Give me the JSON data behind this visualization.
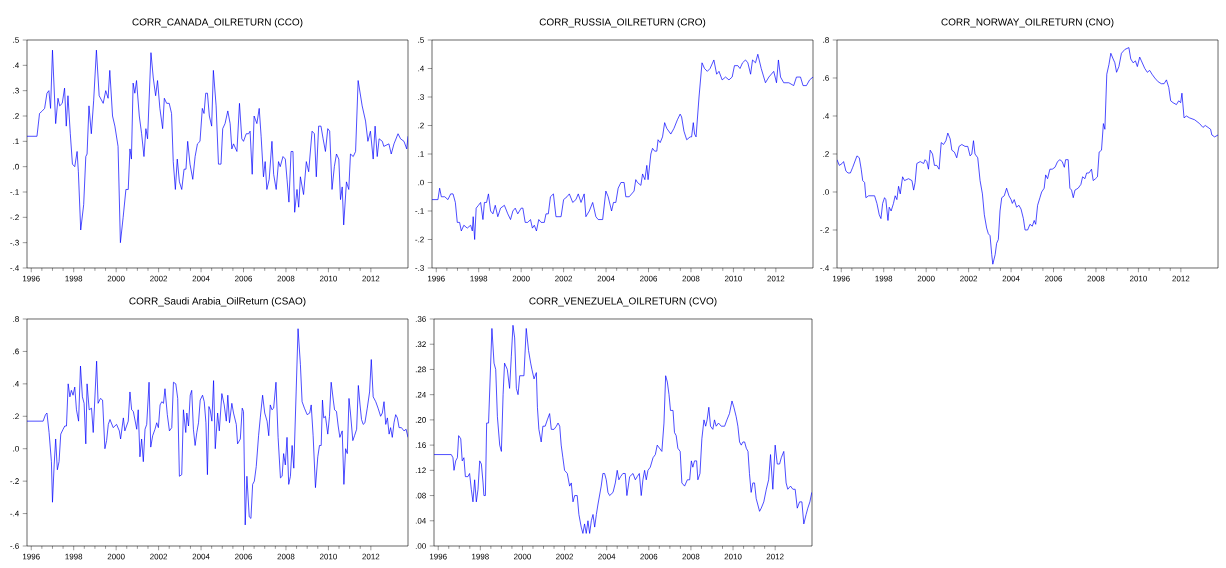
{
  "chart_data": [
    {
      "type": "line",
      "title": "CORR_CANADA_OILRETURN (CCO)",
      "xlim": [
        1995.8,
        2013.75
      ],
      "ylim": [
        -0.4,
        0.5
      ],
      "xticks": [
        1996,
        1998,
        2000,
        2002,
        2004,
        2006,
        2008,
        2010,
        2012
      ],
      "yticks": [
        {
          "value": -0.4,
          "label": "-.4"
        },
        {
          "value": -0.3,
          "label": "-.3"
        },
        {
          "value": -0.2,
          "label": "-.2"
        },
        {
          "value": -0.1,
          "label": "-.1"
        },
        {
          "value": 0,
          "label": ".0"
        },
        {
          "value": 0.1,
          "label": ".1"
        },
        {
          "value": 0.2,
          "label": ".2"
        },
        {
          "value": 0.3,
          "label": ".3"
        },
        {
          "value": 0.4,
          "label": ".4"
        },
        {
          "value": 0.5,
          "label": ".5"
        }
      ],
      "x": [
        1995.8,
        1996.27,
        1996.39,
        1996.52,
        1996.63,
        1996.74,
        1996.83,
        1996.91,
        1997.0,
        1997.15,
        1997.26,
        1997.34,
        1997.46,
        1997.57,
        1997.65,
        1997.73,
        1997.84,
        1997.94,
        1998.05,
        1998.16,
        1998.22,
        1998.33,
        1998.47,
        1998.57,
        1998.63,
        1998.72,
        1998.83,
        1998.94,
        1999.07,
        1999.2,
        1999.39,
        1999.51,
        1999.62,
        1999.7,
        1999.83,
        1999.94,
        2000.09,
        2000.2,
        2000.33,
        2000.46,
        2000.57,
        2000.65,
        2000.72,
        2000.8,
        2000.88,
        2000.96,
        2001.09,
        2001.2,
        2001.31,
        2001.4,
        2001.48,
        2001.64,
        2001.75,
        2001.86,
        2001.95,
        2002.06,
        2002.19,
        2002.27,
        2002.38,
        2002.5,
        2002.61,
        2002.69,
        2002.79,
        2002.88,
        2002.98,
        2003.09,
        2003.2,
        2003.29,
        2003.37,
        2003.48,
        2003.61,
        2003.72,
        2003.83,
        2003.95,
        2004.06,
        2004.14,
        2004.22,
        2004.3,
        2004.39,
        2004.5,
        2004.58,
        2004.71,
        2004.82,
        2004.94,
        2005.02,
        2005.13,
        2005.26,
        2005.37,
        2005.45,
        2005.53,
        2005.69,
        2005.81,
        2005.92,
        2006.0,
        2006.13,
        2006.24,
        2006.31,
        2006.41,
        2006.5,
        2006.63,
        2006.74,
        2006.83,
        2006.94,
        2007.02,
        2007.1,
        2007.21,
        2007.34,
        2007.42,
        2007.54,
        2007.65,
        2007.73,
        2007.86,
        2007.97,
        2008.05,
        2008.14,
        2008.24,
        2008.33,
        2008.41,
        2008.52,
        2008.6,
        2008.68,
        2008.83,
        2008.96,
        2009.07,
        2009.23,
        2009.34,
        2009.43,
        2009.54,
        2009.65,
        2009.75,
        2009.86,
        2009.97,
        2010.06,
        2010.17,
        2010.28,
        2010.38,
        2010.49,
        2010.57,
        2010.65,
        2010.72,
        2010.85,
        2010.96,
        2011.04,
        2011.17,
        2011.28,
        2011.4,
        2011.59,
        2011.75,
        2011.86,
        2011.98,
        2012.11,
        2012.2,
        2012.3,
        2012.39,
        2012.54,
        2012.61,
        2012.85,
        2012.96,
        2013.09,
        2013.28,
        2013.4,
        2013.56,
        2013.69,
        2013.75
      ],
      "series": [
        {
          "color": "#0000ff",
          "values": [
            0.12,
            0.12,
            0.21,
            0.22,
            0.23,
            0.29,
            0.3,
            0.23,
            0.46,
            0.17,
            0.27,
            0.24,
            0.25,
            0.31,
            0.16,
            0.28,
            0.13,
            0.01,
            0.0,
            0.06,
            -0.02,
            -0.25,
            -0.15,
            0.04,
            0.05,
            0.24,
            0.13,
            0.26,
            0.46,
            0.28,
            0.25,
            0.3,
            0.27,
            0.38,
            0.2,
            0.16,
            0.08,
            -0.3,
            -0.2,
            -0.09,
            -0.09,
            0.07,
            0.03,
            0.33,
            0.29,
            0.34,
            0.2,
            0.13,
            0.04,
            0.15,
            0.11,
            0.45,
            0.35,
            0.28,
            0.34,
            0.23,
            0.15,
            0.27,
            0.25,
            0.25,
            0.21,
            0.02,
            -0.09,
            0.03,
            -0.06,
            -0.09,
            -0.01,
            -0.01,
            0.1,
            0.01,
            -0.05,
            0.04,
            0.09,
            0.1,
            0.23,
            0.21,
            0.29,
            0.29,
            0.2,
            0.16,
            0.38,
            0.24,
            0.01,
            0.01,
            0.15,
            0.17,
            0.22,
            0.17,
            0.07,
            0.09,
            0.06,
            0.25,
            0.11,
            0.1,
            0.13,
            0.13,
            0.14,
            -0.03,
            0.2,
            0.17,
            0.23,
            0.12,
            -0.04,
            0.02,
            -0.09,
            -0.05,
            0.1,
            -0.03,
            -0.09,
            0.02,
            0.0,
            0.04,
            0.03,
            -0.05,
            -0.14,
            0.06,
            0.06,
            -0.18,
            -0.09,
            -0.16,
            -0.04,
            -0.11,
            0.02,
            -0.02,
            0.14,
            0.13,
            -0.04,
            0.16,
            0.16,
            0.11,
            0.06,
            0.15,
            0.14,
            -0.09,
            0.0,
            0.05,
            0.03,
            -0.13,
            -0.08,
            -0.23,
            -0.06,
            -0.09,
            0.05,
            0.04,
            0.06,
            0.34,
            0.24,
            0.18,
            0.1,
            0.14,
            0.03,
            0.16,
            0.04,
            0.11,
            0.1,
            0.08,
            0.09,
            0.05,
            0.09,
            0.13,
            0.11,
            0.1,
            0.07,
            0.12
          ]
        }
      ]
    },
    {
      "type": "line",
      "title": "CORR_RUSSIA_OILRETURN (CRO)",
      "xlim": [
        1995.8,
        2013.75
      ],
      "ylim": [
        -0.3,
        0.5
      ],
      "xticks": [
        1996,
        1998,
        2000,
        2002,
        2004,
        2006,
        2008,
        2010,
        2012
      ],
      "yticks": [
        {
          "value": -0.3,
          "label": "-.3"
        },
        {
          "value": -0.2,
          "label": "-.2"
        },
        {
          "value": -0.1,
          "label": "-.1"
        },
        {
          "value": 0,
          "label": ".0"
        },
        {
          "value": 0.1,
          "label": ".1"
        },
        {
          "value": 0.2,
          "label": ".2"
        },
        {
          "value": 0.3,
          "label": ".3"
        },
        {
          "value": 0.4,
          "label": ".4"
        },
        {
          "value": 0.5,
          "label": ".5"
        }
      ],
      "x": [
        1995.8,
        1996.08,
        1996.16,
        1996.24,
        1996.4,
        1996.55,
        1996.68,
        1996.79,
        1996.9,
        1996.99,
        1997.1,
        1997.18,
        1997.3,
        1997.46,
        1997.62,
        1997.7,
        1997.74,
        1997.81,
        1997.88,
        1997.99,
        1998.09,
        1998.2,
        1998.27,
        1998.37,
        1998.46,
        1998.56,
        1998.67,
        1998.78,
        1998.9,
        1999.03,
        1999.21,
        1999.37,
        1999.5,
        1999.61,
        1999.72,
        1999.84,
        2000.0,
        2000.08,
        2000.19,
        2000.31,
        2000.44,
        2000.53,
        2000.62,
        2000.72,
        2000.83,
        2000.94,
        2001.09,
        2001.17,
        2001.28,
        2001.38,
        2001.52,
        2001.64,
        2001.75,
        2001.88,
        2002.0,
        2002.16,
        2002.27,
        2002.43,
        2002.58,
        2002.69,
        2002.82,
        2002.97,
        2003.05,
        2003.21,
        2003.37,
        2003.52,
        2003.63,
        2003.84,
        2003.99,
        2004.1,
        2004.26,
        2004.35,
        2004.46,
        2004.57,
        2004.7,
        2004.85,
        2004.93,
        2005.09,
        2005.32,
        2005.4,
        2005.48,
        2005.64,
        2005.72,
        2005.83,
        2005.92,
        2005.98,
        2006.11,
        2006.19,
        2006.29,
        2006.39,
        2006.45,
        2006.55,
        2006.66,
        2006.76,
        2006.86,
        2007.05,
        2007.2,
        2007.36,
        2007.49,
        2007.56,
        2007.67,
        2007.8,
        2007.96,
        2008.03,
        2008.11,
        2008.17,
        2008.24,
        2008.38,
        2008.52,
        2008.64,
        2008.77,
        2008.9,
        2009.08,
        2009.21,
        2009.32,
        2009.47,
        2009.63,
        2009.79,
        2009.94,
        2010.05,
        2010.21,
        2010.31,
        2010.43,
        2010.57,
        2010.68,
        2010.81,
        2010.9,
        2011.04,
        2011.15,
        2011.31,
        2011.51,
        2011.67,
        2011.9,
        2012.03,
        2012.12,
        2012.22,
        2012.37,
        2012.61,
        2012.84,
        2012.97,
        2013.16,
        2013.28,
        2013.44,
        2013.59,
        2013.75
      ],
      "series": [
        {
          "color": "#0000ff",
          "values": [
            -0.06,
            -0.06,
            -0.02,
            -0.05,
            -0.05,
            -0.06,
            -0.04,
            -0.04,
            -0.07,
            -0.14,
            -0.14,
            -0.17,
            -0.15,
            -0.16,
            -0.15,
            -0.17,
            -0.12,
            -0.2,
            -0.09,
            -0.08,
            -0.07,
            -0.13,
            -0.07,
            -0.07,
            -0.04,
            -0.1,
            -0.11,
            -0.08,
            -0.12,
            -0.09,
            -0.08,
            -0.11,
            -0.13,
            -0.1,
            -0.09,
            -0.11,
            -0.09,
            -0.09,
            -0.14,
            -0.14,
            -0.13,
            -0.16,
            -0.15,
            -0.17,
            -0.13,
            -0.14,
            -0.14,
            -0.11,
            -0.11,
            -0.05,
            -0.04,
            -0.12,
            -0.12,
            -0.12,
            -0.06,
            -0.05,
            -0.04,
            -0.07,
            -0.06,
            -0.04,
            -0.07,
            -0.04,
            -0.12,
            -0.1,
            -0.07,
            -0.12,
            -0.13,
            -0.13,
            -0.03,
            -0.05,
            -0.1,
            -0.07,
            -0.07,
            -0.02,
            0.0,
            0.0,
            -0.05,
            -0.05,
            -0.03,
            0.01,
            0.0,
            -0.01,
            0.03,
            0.01,
            0.06,
            0.01,
            0.1,
            0.12,
            0.11,
            0.11,
            0.15,
            0.14,
            0.16,
            0.21,
            0.19,
            0.17,
            0.19,
            0.22,
            0.24,
            0.23,
            0.18,
            0.15,
            0.16,
            0.16,
            0.21,
            0.17,
            0.16,
            0.3,
            0.42,
            0.4,
            0.39,
            0.4,
            0.43,
            0.38,
            0.39,
            0.36,
            0.37,
            0.36,
            0.37,
            0.41,
            0.41,
            0.4,
            0.42,
            0.43,
            0.42,
            0.38,
            0.43,
            0.42,
            0.45,
            0.4,
            0.35,
            0.37,
            0.39,
            0.35,
            0.43,
            0.37,
            0.35,
            0.35,
            0.34,
            0.37,
            0.37,
            0.34,
            0.34,
            0.36,
            0.37
          ]
        }
      ]
    },
    {
      "type": "line",
      "title": "CORR_NORWAY_OILRETURN (CNO)",
      "xlim": [
        1995.8,
        2013.75
      ],
      "ylim": [
        -0.4,
        0.8
      ],
      "xticks": [
        1996,
        1998,
        2000,
        2002,
        2004,
        2006,
        2008,
        2010,
        2012
      ],
      "yticks": [
        {
          "value": -0.4,
          "label": "-.4"
        },
        {
          "value": -0.2,
          "label": "-.2"
        },
        {
          "value": 0,
          "label": ".0"
        },
        {
          "value": 0.2,
          "label": ".2"
        },
        {
          "value": 0.4,
          "label": ".4"
        },
        {
          "value": 0.6,
          "label": ".6"
        },
        {
          "value": 0.8,
          "label": ".8"
        }
      ],
      "x": [
        1995.8,
        1995.91,
        1996.04,
        1996.11,
        1996.22,
        1996.32,
        1996.43,
        1996.54,
        1996.74,
        1996.85,
        1996.94,
        1997.01,
        1997.1,
        1997.16,
        1997.29,
        1997.45,
        1997.57,
        1997.68,
        1997.79,
        1997.87,
        1997.95,
        1998.04,
        1998.1,
        1998.2,
        1998.26,
        1998.35,
        1998.46,
        1998.54,
        1998.62,
        1998.7,
        1998.78,
        1998.89,
        1998.98,
        1999.17,
        1999.33,
        1999.41,
        1999.48,
        1999.56,
        1999.72,
        1999.88,
        1999.95,
        2000.03,
        2000.11,
        2000.19,
        2000.3,
        2000.39,
        2000.5,
        2000.61,
        2000.71,
        2000.82,
        2000.93,
        2001.02,
        2001.13,
        2001.21,
        2001.33,
        2001.44,
        2001.55,
        2001.68,
        2001.83,
        2001.96,
        2002.07,
        2002.15,
        2002.23,
        2002.3,
        2002.43,
        2002.54,
        2002.65,
        2002.74,
        2002.85,
        2002.93,
        2003.01,
        2003.09,
        2003.14,
        2003.25,
        2003.32,
        2003.4,
        2003.48,
        2003.56,
        2003.68,
        2003.79,
        2003.9,
        2004.0,
        2004.06,
        2004.15,
        2004.26,
        2004.37,
        2004.47,
        2004.58,
        2004.66,
        2004.78,
        2004.89,
        2005.0,
        2005.09,
        2005.16,
        2005.25,
        2005.36,
        2005.44,
        2005.56,
        2005.63,
        2005.72,
        2005.83,
        2005.94,
        2006.07,
        2006.19,
        2006.3,
        2006.41,
        2006.51,
        2006.57,
        2006.69,
        2006.77,
        2006.85,
        2006.93,
        2007.01,
        2007.16,
        2007.29,
        2007.37,
        2007.48,
        2007.56,
        2007.67,
        2007.79,
        2007.87,
        2007.98,
        2008.07,
        2008.15,
        2008.26,
        2008.35,
        2008.42,
        2008.51,
        2008.61,
        2008.7,
        2008.81,
        2008.89,
        2008.97,
        2009.08,
        2009.2,
        2009.36,
        2009.55,
        2009.64,
        2009.75,
        2009.86,
        2009.95,
        2010.06,
        2010.14,
        2010.3,
        2010.42,
        2010.53,
        2010.64,
        2010.77,
        2010.93,
        2011.08,
        2011.21,
        2011.32,
        2011.43,
        2011.52,
        2011.63,
        2011.79,
        2011.9,
        2011.99,
        2012.05,
        2012.15,
        2012.26,
        2012.41,
        2012.65,
        2012.88,
        2013.04,
        2013.15,
        2013.28,
        2013.4,
        2013.46,
        2013.59,
        2013.75
      ],
      "series": [
        {
          "color": "#0000ff",
          "values": [
            0.17,
            0.14,
            0.15,
            0.16,
            0.11,
            0.1,
            0.1,
            0.13,
            0.19,
            0.18,
            0.12,
            0.06,
            0.05,
            -0.03,
            -0.02,
            -0.02,
            -0.02,
            -0.06,
            -0.12,
            -0.14,
            -0.06,
            -0.03,
            -0.04,
            -0.15,
            -0.08,
            -0.1,
            -0.06,
            -0.02,
            -0.04,
            0.03,
            -0.01,
            0.08,
            0.06,
            0.07,
            0.06,
            0.01,
            0.05,
            0.15,
            0.16,
            0.15,
            0.17,
            0.16,
            0.12,
            0.22,
            0.2,
            0.14,
            0.14,
            0.12,
            0.26,
            0.25,
            0.27,
            0.31,
            0.28,
            0.22,
            0.21,
            0.18,
            0.24,
            0.25,
            0.24,
            0.24,
            0.19,
            0.2,
            0.27,
            0.2,
            0.18,
            0.06,
            -0.01,
            -0.12,
            -0.19,
            -0.22,
            -0.23,
            -0.33,
            -0.38,
            -0.33,
            -0.27,
            -0.25,
            -0.1,
            -0.03,
            -0.02,
            0.02,
            -0.02,
            -0.04,
            -0.06,
            -0.04,
            -0.08,
            -0.07,
            -0.09,
            -0.14,
            -0.2,
            -0.2,
            -0.17,
            -0.18,
            -0.15,
            -0.17,
            -0.07,
            -0.03,
            0.0,
            0.02,
            0.09,
            0.07,
            0.12,
            0.12,
            0.13,
            0.16,
            0.17,
            0.16,
            0.13,
            0.17,
            0.17,
            0.02,
            0.01,
            -0.03,
            0.01,
            0.02,
            0.04,
            0.08,
            0.07,
            0.1,
            0.1,
            0.12,
            0.06,
            0.07,
            0.08,
            0.21,
            0.22,
            0.36,
            0.33,
            0.62,
            0.67,
            0.73,
            0.7,
            0.68,
            0.63,
            0.66,
            0.73,
            0.75,
            0.76,
            0.7,
            0.68,
            0.69,
            0.66,
            0.71,
            0.69,
            0.65,
            0.63,
            0.64,
            0.62,
            0.6,
            0.58,
            0.57,
            0.57,
            0.59,
            0.55,
            0.48,
            0.47,
            0.46,
            0.48,
            0.47,
            0.52,
            0.39,
            0.4,
            0.39,
            0.38,
            0.36,
            0.34,
            0.35,
            0.34,
            0.33,
            0.3,
            0.29,
            0.3
          ]
        }
      ]
    },
    {
      "type": "line",
      "title": "CORR_Saudi Arabia_OilReturn (CSAO)",
      "xlim": [
        1995.8,
        2013.75
      ],
      "ylim": [
        -0.6,
        0.8
      ],
      "xticks": [
        1996,
        1998,
        2000,
        2002,
        2004,
        2006,
        2008,
        2010,
        2012
      ],
      "yticks": [
        {
          "value": -0.6,
          "label": "-.6"
        },
        {
          "value": -0.4,
          "label": "-.4"
        },
        {
          "value": -0.2,
          "label": "-.2"
        },
        {
          "value": 0,
          "label": ".0"
        },
        {
          "value": 0.2,
          "label": ".2"
        },
        {
          "value": 0.4,
          "label": ".4"
        },
        {
          "value": 0.6,
          "label": ".6"
        },
        {
          "value": 0.8,
          "label": ".8"
        }
      ],
      "x": [
        1995.8,
        1996.56,
        1996.67,
        1996.74,
        1996.84,
        1996.95,
        1997.0,
        1997.08,
        1997.15,
        1997.23,
        1997.31,
        1997.39,
        1997.5,
        1997.58,
        1997.66,
        1997.74,
        1997.82,
        1997.89,
        1997.97,
        1998.05,
        1998.13,
        1998.23,
        1998.32,
        1998.41,
        1998.49,
        1998.57,
        1998.63,
        1998.73,
        1998.84,
        1998.92,
        1999.08,
        1999.15,
        1999.26,
        1999.36,
        1999.47,
        1999.55,
        1999.63,
        1999.71,
        1999.86,
        2000.02,
        2000.15,
        2000.21,
        2000.34,
        2000.41,
        2000.57,
        2000.65,
        2000.73,
        2000.81,
        2000.97,
        2001.04,
        2001.12,
        2001.2,
        2001.28,
        2001.36,
        2001.44,
        2001.55,
        2001.63,
        2001.72,
        2001.83,
        2001.91,
        2001.99,
        2002.07,
        2002.15,
        2002.23,
        2002.3,
        2002.41,
        2002.51,
        2002.62,
        2002.7,
        2002.81,
        2002.9,
        2002.98,
        2003.09,
        2003.17,
        2003.28,
        2003.33,
        2003.41,
        2003.49,
        2003.56,
        2003.64,
        2003.72,
        2003.8,
        2003.88,
        2003.96,
        2004.07,
        2004.15,
        2004.23,
        2004.3,
        2004.37,
        2004.43,
        2004.51,
        2004.59,
        2004.67,
        2004.78,
        2004.86,
        2004.98,
        2005.09,
        2005.19,
        2005.26,
        2005.34,
        2005.45,
        2005.53,
        2005.66,
        2005.72,
        2005.85,
        2005.94,
        2006.0,
        2006.08,
        2006.16,
        2006.27,
        2006.35,
        2006.43,
        2006.51,
        2006.6,
        2006.71,
        2006.79,
        2006.9,
        2007.0,
        2007.11,
        2007.19,
        2007.26,
        2007.34,
        2007.42,
        2007.53,
        2007.63,
        2007.74,
        2007.82,
        2007.89,
        2007.97,
        2008.05,
        2008.13,
        2008.21,
        2008.29,
        2008.37,
        2008.48,
        2008.57,
        2008.68,
        2008.76,
        2008.87,
        2009.0,
        2009.12,
        2009.19,
        2009.28,
        2009.39,
        2009.5,
        2009.58,
        2009.66,
        2009.72,
        2009.78,
        2009.86,
        2009.97,
        2010.05,
        2010.13,
        2010.23,
        2010.29,
        2010.38,
        2010.46,
        2010.54,
        2010.65,
        2010.73,
        2010.81,
        2010.89,
        2010.97,
        2011.04,
        2011.15,
        2011.23,
        2011.33,
        2011.41,
        2011.49,
        2011.56,
        2011.64,
        2011.72,
        2011.83,
        2011.94,
        2012.02,
        2012.11,
        2012.23,
        2012.34,
        2012.46,
        2012.54,
        2012.62,
        2012.7,
        2012.78,
        2012.86,
        2012.93,
        2013.01,
        2013.09,
        2013.17,
        2013.25,
        2013.33,
        2013.44,
        2013.56,
        2013.66,
        2013.75
      ],
      "series": [
        {
          "color": "#0000ff",
          "values": [
            0.17,
            0.17,
            0.21,
            0.22,
            0.1,
            -0.08,
            -0.33,
            -0.1,
            0.06,
            -0.13,
            -0.08,
            0.09,
            0.12,
            0.14,
            0.14,
            0.4,
            0.32,
            0.36,
            0.33,
            0.38,
            0.24,
            0.17,
            0.51,
            0.32,
            0.28,
            0.03,
            0.4,
            0.24,
            0.25,
            0.1,
            0.54,
            0.28,
            0.31,
            0.3,
            0.0,
            0.05,
            0.15,
            0.18,
            0.13,
            0.15,
            0.11,
            0.06,
            0.19,
            0.11,
            0.17,
            0.35,
            0.24,
            0.23,
            0.12,
            0.24,
            -0.05,
            0.06,
            -0.08,
            0.12,
            0.15,
            0.41,
            0.01,
            0.08,
            0.12,
            0.16,
            0.13,
            0.27,
            0.29,
            0.28,
            0.37,
            0.21,
            0.11,
            0.13,
            0.41,
            0.4,
            0.31,
            -0.17,
            -0.16,
            0.24,
            0.1,
            0.22,
            0.14,
            0.33,
            0.36,
            0.12,
            0.02,
            0.1,
            0.16,
            0.3,
            0.33,
            0.29,
            0.16,
            -0.16,
            0.26,
            0.24,
            0.17,
            0.42,
            0.0,
            0.22,
            0.11,
            0.34,
            0.27,
            0.17,
            0.33,
            0.16,
            0.28,
            0.22,
            0.15,
            0.03,
            0.06,
            0.25,
            0.23,
            -0.47,
            -0.17,
            -0.42,
            -0.43,
            -0.22,
            -0.2,
            -0.11,
            0.08,
            0.19,
            0.33,
            0.22,
            0.17,
            0.08,
            0.27,
            0.24,
            0.25,
            0.41,
            0.07,
            -0.18,
            -0.17,
            -0.03,
            -0.1,
            0.07,
            -0.22,
            -0.17,
            0.02,
            -0.12,
            0.35,
            0.74,
            0.52,
            0.29,
            0.25,
            0.21,
            0.22,
            0.27,
            0.08,
            -0.24,
            -0.05,
            0.02,
            0.02,
            0.3,
            0.19,
            0.2,
            0.09,
            0.2,
            0.41,
            0.3,
            0.24,
            0.23,
            0.14,
            0.07,
            0.11,
            -0.22,
            0.0,
            -0.03,
            0.31,
            0.22,
            0.05,
            0.08,
            0.12,
            0.39,
            0.27,
            0.18,
            0.15,
            0.16,
            0.25,
            0.35,
            0.55,
            0.32,
            0.29,
            0.25,
            0.2,
            0.22,
            0.29,
            0.15,
            0.19,
            0.09,
            0.13,
            0.07,
            0.16,
            0.21,
            0.19,
            0.13,
            0.13,
            0.11,
            0.12,
            0.07
          ]
        }
      ]
    },
    {
      "type": "line",
      "title": "CORR_VENEZUELA_OILRETURN (CVO)",
      "xlim": [
        1995.8,
        2013.75
      ],
      "ylim": [
        0,
        0.36
      ],
      "xticks": [
        1996,
        1998,
        2000,
        2002,
        2004,
        2006,
        2008,
        2010,
        2012
      ],
      "yticks": [
        {
          "value": 0,
          "label": ".00"
        },
        {
          "value": 0.04,
          "label": ".04"
        },
        {
          "value": 0.08,
          "label": ".08"
        },
        {
          "value": 0.12,
          "label": ".12"
        },
        {
          "value": 0.16,
          "label": ".16"
        },
        {
          "value": 0.2,
          "label": ".20"
        },
        {
          "value": 0.24,
          "label": ".24"
        },
        {
          "value": 0.28,
          "label": ".28"
        },
        {
          "value": 0.32,
          "label": ".32"
        },
        {
          "value": 0.36,
          "label": ".36"
        }
      ],
      "x": [
        1995.8,
        1996.62,
        1996.7,
        1996.75,
        1996.83,
        1996.91,
        1996.97,
        1997.07,
        1997.14,
        1997.22,
        1997.29,
        1997.41,
        1997.49,
        1997.57,
        1997.65,
        1997.73,
        1997.81,
        1997.89,
        1997.97,
        1998.05,
        1998.13,
        1998.17,
        1998.24,
        1998.3,
        1998.39,
        1998.55,
        1998.65,
        1998.73,
        1998.81,
        1998.92,
        1999.0,
        1999.08,
        1999.15,
        1999.28,
        1999.39,
        1999.47,
        1999.55,
        1999.63,
        1999.71,
        1999.79,
        1999.87,
        1999.95,
        2000.07,
        2000.18,
        2000.29,
        2000.39,
        2000.45,
        2000.55,
        2000.66,
        2000.71,
        2000.78,
        2000.89,
        2000.97,
        2001.08,
        2001.18,
        2001.29,
        2001.37,
        2001.5,
        2001.61,
        2001.69,
        2001.77,
        2001.84,
        2001.92,
        2002.0,
        2002.13,
        2002.24,
        2002.32,
        2002.4,
        2002.48,
        2002.6,
        2002.68,
        2002.79,
        2002.87,
        2002.95,
        2003.03,
        2003.11,
        2003.19,
        2003.27,
        2003.35,
        2003.43,
        2003.51,
        2003.58,
        2003.66,
        2003.74,
        2003.82,
        2003.9,
        2003.98,
        2004.06,
        2004.14,
        2004.3,
        2004.41,
        2004.5,
        2004.58,
        2004.66,
        2004.77,
        2004.88,
        2004.96,
        2005.09,
        2005.25,
        2005.36,
        2005.45,
        2005.55,
        2005.64,
        2005.72,
        2005.8,
        2005.88,
        2005.96,
        2006.07,
        2006.2,
        2006.31,
        2006.4,
        2006.51,
        2006.62,
        2006.72,
        2006.8,
        2006.88,
        2006.96,
        2007.03,
        2007.15,
        2007.22,
        2007.3,
        2007.38,
        2007.49,
        2007.57,
        2007.7,
        2007.83,
        2007.94,
        2008.02,
        2008.09,
        2008.17,
        2008.27,
        2008.33,
        2008.43,
        2008.52,
        2008.62,
        2008.7,
        2008.77,
        2008.85,
        2008.93,
        2009.04,
        2009.12,
        2009.2,
        2009.31,
        2009.44,
        2009.6,
        2009.71,
        2009.83,
        2009.95,
        2010.04,
        2010.15,
        2010.23,
        2010.31,
        2010.39,
        2010.47,
        2010.55,
        2010.63,
        2010.71,
        2010.78,
        2010.86,
        2010.94,
        2011.02,
        2011.1,
        2011.26,
        2011.34,
        2011.46,
        2011.58,
        2011.69,
        2011.78,
        2011.89,
        2012.0,
        2012.1,
        2012.21,
        2012.29,
        2012.41,
        2012.52,
        2012.6,
        2012.73,
        2012.84,
        2012.95,
        2013.05,
        2013.16,
        2013.27,
        2013.36,
        2013.47,
        2013.55,
        2013.65,
        2013.74
      ],
      "series": [
        {
          "color": "#0000ff",
          "values": [
            0.145,
            0.145,
            0.14,
            0.12,
            0.135,
            0.14,
            0.175,
            0.17,
            0.135,
            0.14,
            0.11,
            0.11,
            0.115,
            0.09,
            0.07,
            0.105,
            0.07,
            0.09,
            0.135,
            0.13,
            0.1,
            0.08,
            0.08,
            0.195,
            0.195,
            0.345,
            0.29,
            0.28,
            0.205,
            0.16,
            0.15,
            0.24,
            0.29,
            0.28,
            0.25,
            0.3,
            0.35,
            0.33,
            0.25,
            0.24,
            0.27,
            0.27,
            0.27,
            0.345,
            0.31,
            0.29,
            0.28,
            0.265,
            0.275,
            0.22,
            0.185,
            0.165,
            0.19,
            0.19,
            0.2,
            0.21,
            0.185,
            0.185,
            0.19,
            0.195,
            0.19,
            0.16,
            0.14,
            0.12,
            0.115,
            0.095,
            0.1,
            0.07,
            0.08,
            0.08,
            0.05,
            0.03,
            0.02,
            0.035,
            0.02,
            0.04,
            0.02,
            0.04,
            0.05,
            0.03,
            0.05,
            0.065,
            0.08,
            0.095,
            0.115,
            0.115,
            0.105,
            0.085,
            0.08,
            0.085,
            0.1,
            0.12,
            0.105,
            0.11,
            0.115,
            0.115,
            0.08,
            0.11,
            0.115,
            0.105,
            0.11,
            0.115,
            0.08,
            0.105,
            0.12,
            0.105,
            0.12,
            0.125,
            0.14,
            0.145,
            0.16,
            0.155,
            0.15,
            0.195,
            0.27,
            0.26,
            0.24,
            0.215,
            0.215,
            0.18,
            0.175,
            0.155,
            0.15,
            0.1,
            0.095,
            0.105,
            0.105,
            0.135,
            0.125,
            0.135,
            0.135,
            0.105,
            0.115,
            0.17,
            0.2,
            0.19,
            0.2,
            0.22,
            0.19,
            0.185,
            0.2,
            0.19,
            0.195,
            0.19,
            0.19,
            0.2,
            0.21,
            0.23,
            0.22,
            0.205,
            0.19,
            0.165,
            0.16,
            0.165,
            0.165,
            0.155,
            0.15,
            0.115,
            0.085,
            0.1,
            0.1,
            0.075,
            0.055,
            0.06,
            0.07,
            0.09,
            0.105,
            0.145,
            0.09,
            0.16,
            0.13,
            0.13,
            0.14,
            0.15,
            0.1,
            0.09,
            0.095,
            0.09,
            0.09,
            0.06,
            0.07,
            0.07,
            0.035,
            0.05,
            0.06,
            0.07,
            0.085
          ]
        }
      ]
    }
  ]
}
